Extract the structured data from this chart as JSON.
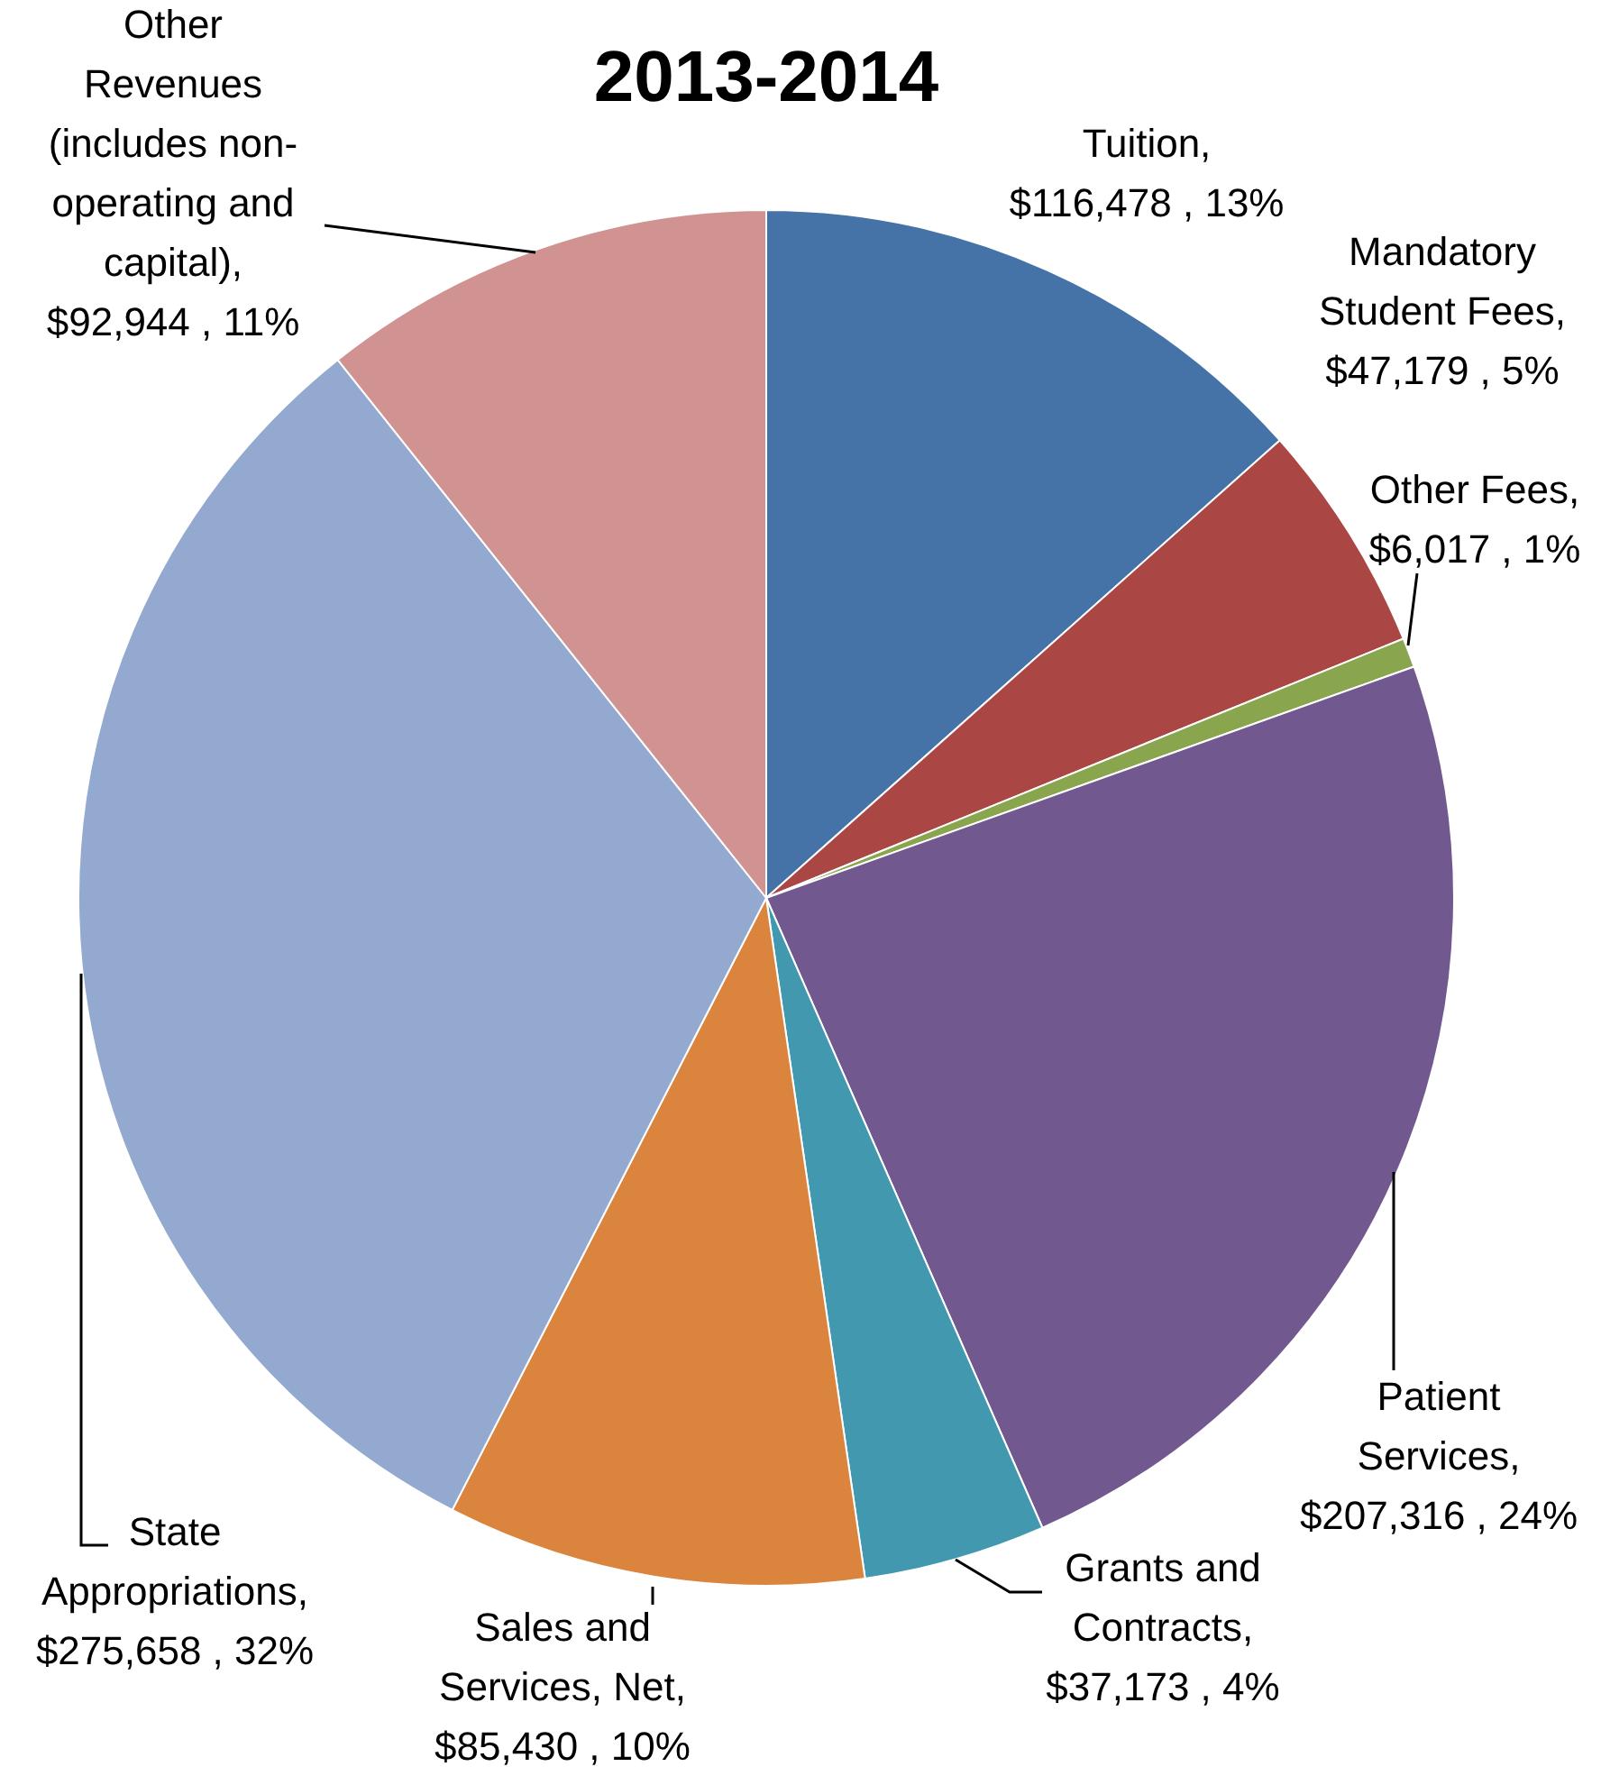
{
  "chart_data": {
    "type": "pie",
    "title": "2013-2014",
    "categories": [
      "Tuition",
      "Mandatory Student Fees",
      "Other Fees",
      "Patient Services",
      "Grants and Contracts",
      "Sales and Services, Net",
      "State Appropriations",
      "Other Revenues (includes non-operating and capital)"
    ],
    "values": [
      116478,
      47179,
      6017,
      207316,
      37173,
      85430,
      275658,
      92944
    ],
    "colors": [
      "#4572a7",
      "#aa4643",
      "#89a54e",
      "#71588f",
      "#4198af",
      "#db843d",
      "#93a9cf",
      "#d19392"
    ],
    "value_labels": [
      ", $116,478 , 13%",
      ", $47,179 , 5%",
      ", $6,017 , 1%",
      ", $207,316 , 24%",
      ", $37,173 , 4%",
      ", $85,430 , 10%",
      ", $275,658 , 32%",
      ", $92,944 , 11%"
    ],
    "legend": false
  }
}
